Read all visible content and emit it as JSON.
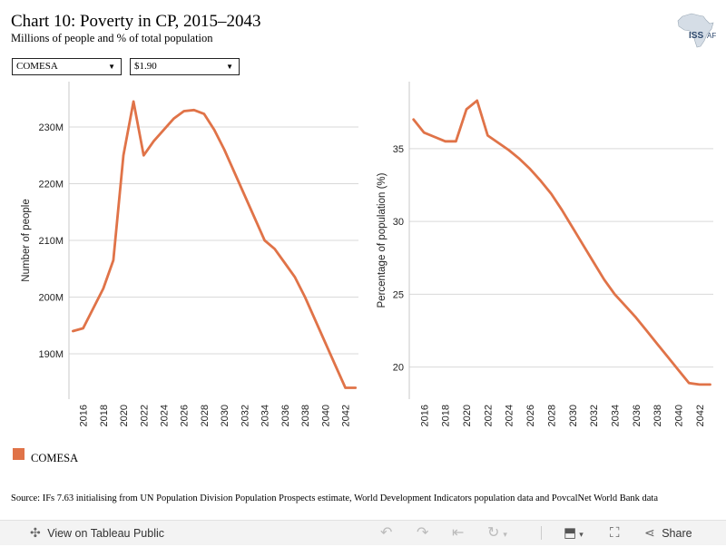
{
  "header": {
    "title": "Chart 10: Poverty in CP, 2015–2043",
    "subtitle": "Millions of people and % of total population"
  },
  "logo": {
    "text": "ISS|AF",
    "icon": "africa-map-icon"
  },
  "filters": {
    "region": "COMESA",
    "threshold": "$1.90"
  },
  "legend": {
    "label": "COMESA",
    "color": "#E07348"
  },
  "source": "Source: IFs 7.63 initialising from UN Population Division Population Prospects estimate, World Development Indicators population data and PovcalNet World Bank data",
  "toolbar": {
    "view_label": "View on Tableau Public",
    "share_label": "Share",
    "icons": [
      "tableau-icon",
      "undo-icon",
      "redo-icon",
      "revert-icon",
      "refresh-icon",
      "download-icon",
      "fullscreen-icon",
      "share-icon"
    ]
  },
  "chart_data": [
    {
      "type": "line",
      "title": "",
      "xlabel": "",
      "ylabel": "Number of people",
      "x": [
        2015,
        2016,
        2017,
        2018,
        2019,
        2020,
        2021,
        2022,
        2023,
        2024,
        2025,
        2026,
        2027,
        2028,
        2029,
        2030,
        2031,
        2032,
        2033,
        2034,
        2035,
        2036,
        2037,
        2038,
        2039,
        2040,
        2041,
        2042,
        2043
      ],
      "series": [
        {
          "name": "COMESA",
          "color": "#E07348",
          "values": [
            194.0,
            194.5,
            198.0,
            201.5,
            206.5,
            225.0,
            234.5,
            225.0,
            227.5,
            229.5,
            231.5,
            232.8,
            233.0,
            232.3,
            229.5,
            226.0,
            222.0,
            218.0,
            214.0,
            210.0,
            208.5,
            206.0,
            203.5,
            200.0,
            196.0,
            192.0,
            188.0,
            184.0,
            184.0
          ]
        }
      ],
      "xticks": [
        2016,
        2018,
        2020,
        2022,
        2024,
        2026,
        2028,
        2030,
        2032,
        2034,
        2036,
        2038,
        2040,
        2042
      ],
      "yticks": [
        190,
        200,
        210,
        220,
        230
      ],
      "ytick_labels": [
        "190M",
        "200M",
        "210M",
        "220M",
        "230M"
      ],
      "xlim": [
        2014.6,
        2043.3
      ],
      "ylim": [
        182,
        238
      ],
      "grid": "horizontal"
    },
    {
      "type": "line",
      "title": "",
      "xlabel": "",
      "ylabel": "Percentage of population (%)",
      "x": [
        2015,
        2016,
        2017,
        2018,
        2019,
        2020,
        2021,
        2022,
        2023,
        2024,
        2025,
        2026,
        2027,
        2028,
        2029,
        2030,
        2031,
        2032,
        2033,
        2034,
        2035,
        2036,
        2037,
        2038,
        2039,
        2040,
        2041,
        2042,
        2043
      ],
      "series": [
        {
          "name": "COMESA",
          "color": "#E07348",
          "values": [
            37.0,
            36.1,
            35.8,
            35.5,
            35.5,
            37.7,
            38.3,
            35.9,
            35.4,
            34.9,
            34.3,
            33.6,
            32.8,
            31.9,
            30.8,
            29.6,
            28.4,
            27.2,
            26.0,
            25.0,
            24.2,
            23.4,
            22.5,
            21.6,
            20.7,
            19.8,
            18.9,
            18.8,
            18.8
          ]
        }
      ],
      "xticks": [
        2016,
        2018,
        2020,
        2022,
        2024,
        2026,
        2028,
        2030,
        2032,
        2034,
        2036,
        2038,
        2040,
        2042
      ],
      "yticks": [
        20,
        25,
        30,
        35
      ],
      "ytick_labels": [
        "20",
        "25",
        "30",
        "35"
      ],
      "xlim": [
        2014.6,
        2043.3
      ],
      "ylim": [
        17.8,
        39.6
      ],
      "grid": "horizontal"
    }
  ]
}
